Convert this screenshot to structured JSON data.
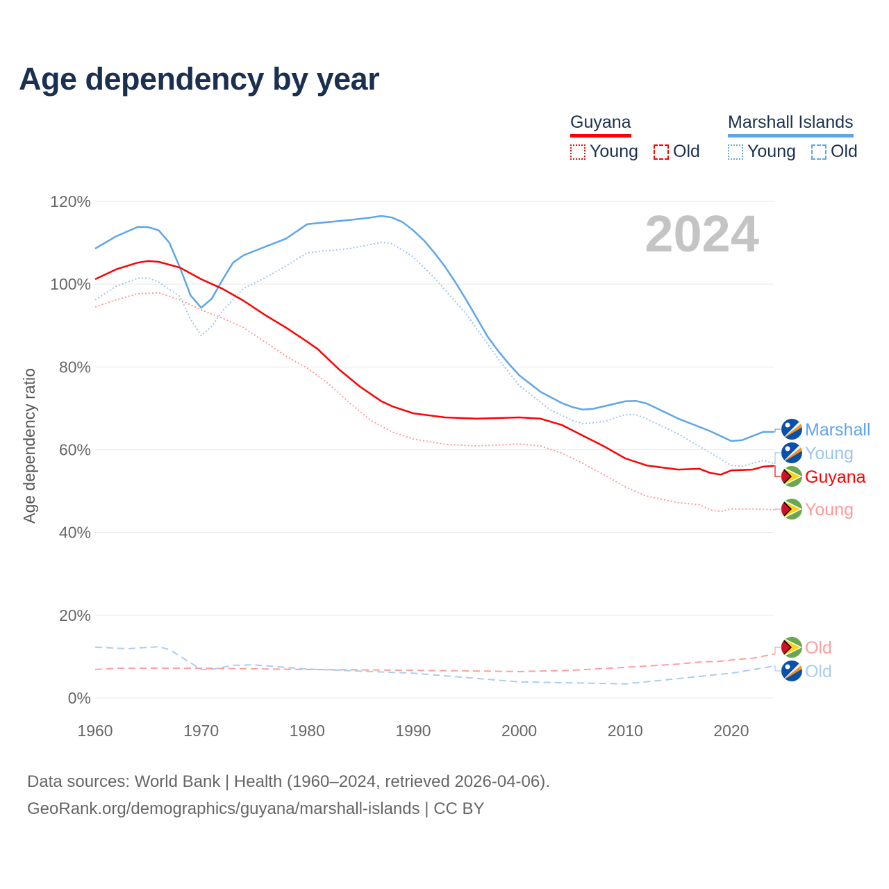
{
  "chart_data": {
    "type": "line",
    "title": "Age dependency by year",
    "ylabel": "Age dependency ratio",
    "xlabel": "",
    "xlim": [
      1960,
      2024
    ],
    "ylim": [
      0,
      120
    ],
    "x_ticks": [
      "1960",
      "1970",
      "1980",
      "1990",
      "2000",
      "2010",
      "2020"
    ],
    "y_ticks": [
      "0%",
      "20%",
      "40%",
      "60%",
      "80%",
      "100%",
      "120%"
    ],
    "grid": true,
    "year_watermark": "2024",
    "legend": {
      "groups": [
        {
          "name": "Guyana",
          "color": "#ff0000",
          "young_label": "Young",
          "old_label": "Old"
        },
        {
          "name": "Marshall Islands",
          "color": "#5ea5ea",
          "young_label": "Young",
          "old_label": "Old"
        }
      ],
      "placement": "top-right"
    },
    "series": [
      {
        "name": "Marshall Islands",
        "end_label": "Marshall",
        "color": "#5ea5ea",
        "style": "solid",
        "points": [
          [
            1960,
            108.6
          ],
          [
            1962,
            111.6
          ],
          [
            1964,
            113.8
          ],
          [
            1965,
            113.8
          ],
          [
            1966,
            113
          ],
          [
            1967,
            110
          ],
          [
            1968,
            104
          ],
          [
            1969,
            97.3
          ],
          [
            1970,
            94.3
          ],
          [
            1971,
            96.5
          ],
          [
            1972,
            101
          ],
          [
            1973,
            105.2
          ],
          [
            1974,
            107
          ],
          [
            1976,
            109
          ],
          [
            1978,
            111
          ],
          [
            1980,
            114.5
          ],
          [
            1982,
            115
          ],
          [
            1984,
            115.5
          ],
          [
            1986,
            116.1
          ],
          [
            1987,
            116.5
          ],
          [
            1988,
            116.1
          ],
          [
            1989,
            115
          ],
          [
            1990,
            113
          ],
          [
            1991,
            110.6
          ],
          [
            1992,
            107.6
          ],
          [
            1993,
            104.2
          ],
          [
            1994,
            100.4
          ],
          [
            1995,
            96.2
          ],
          [
            1996,
            91.8
          ],
          [
            1997,
            87.4
          ],
          [
            1998,
            83.9
          ],
          [
            1999,
            80.8
          ],
          [
            2000,
            78
          ],
          [
            2002,
            74
          ],
          [
            2004,
            71.3
          ],
          [
            2005,
            70.3
          ],
          [
            2006,
            69.7
          ],
          [
            2007,
            69.9
          ],
          [
            2010,
            71.7
          ],
          [
            2011,
            71.8
          ],
          [
            2012,
            71.2
          ],
          [
            2015,
            67.5
          ],
          [
            2018,
            64.5
          ],
          [
            2020,
            62.1
          ],
          [
            2021,
            62.3
          ],
          [
            2023,
            64.3
          ],
          [
            2024,
            64.3
          ]
        ]
      },
      {
        "name": "Marshall Islands Young",
        "end_label": "Young",
        "color": "#9cc6f0",
        "style": "dotted",
        "points": [
          [
            1960,
            96.2
          ],
          [
            1962,
            99.5
          ],
          [
            1964,
            101.4
          ],
          [
            1965,
            101.5
          ],
          [
            1966,
            100.5
          ],
          [
            1968,
            97
          ],
          [
            1969,
            91.5
          ],
          [
            1970,
            87.6
          ],
          [
            1971,
            89.8
          ],
          [
            1972,
            93.5
          ],
          [
            1974,
            99
          ],
          [
            1976,
            101.5
          ],
          [
            1978,
            104.4
          ],
          [
            1980,
            107.6
          ],
          [
            1984,
            108.6
          ],
          [
            1987,
            110.1
          ],
          [
            1988,
            109.8
          ],
          [
            1990,
            106.6
          ],
          [
            1992,
            101.5
          ],
          [
            1995,
            92.8
          ],
          [
            1998,
            82
          ],
          [
            2000,
            75.5
          ],
          [
            2003,
            69.5
          ],
          [
            2005,
            67.1
          ],
          [
            2006,
            66.3
          ],
          [
            2008,
            66.8
          ],
          [
            2010,
            68.5
          ],
          [
            2011,
            68.5
          ],
          [
            2012,
            67.5
          ],
          [
            2015,
            63.8
          ],
          [
            2018,
            59.3
          ],
          [
            2020,
            56.2
          ],
          [
            2021,
            56
          ],
          [
            2023,
            57.4
          ],
          [
            2024,
            56.7
          ]
        ]
      },
      {
        "name": "Guyana",
        "end_label": "Guyana",
        "color": "#ff0000",
        "style": "solid",
        "points": [
          [
            1960,
            101.2
          ],
          [
            1962,
            103.6
          ],
          [
            1964,
            105.2
          ],
          [
            1965,
            105.6
          ],
          [
            1966,
            105.4
          ],
          [
            1968,
            104
          ],
          [
            1970,
            101.2
          ],
          [
            1972,
            98.9
          ],
          [
            1974,
            96
          ],
          [
            1976,
            92.6
          ],
          [
            1978,
            89.5
          ],
          [
            1980,
            86.1
          ],
          [
            1981,
            84.3
          ],
          [
            1983,
            79.4
          ],
          [
            1985,
            75.2
          ],
          [
            1987,
            71.7
          ],
          [
            1988,
            70.5
          ],
          [
            1990,
            68.8
          ],
          [
            1993,
            67.8
          ],
          [
            1996,
            67.5
          ],
          [
            2000,
            67.8
          ],
          [
            2002,
            67.5
          ],
          [
            2004,
            66
          ],
          [
            2006,
            63.4
          ],
          [
            2008,
            60.8
          ],
          [
            2010,
            57.9
          ],
          [
            2012,
            56.2
          ],
          [
            2015,
            55.2
          ],
          [
            2017,
            55.4
          ],
          [
            2018,
            54.4
          ],
          [
            2019,
            54
          ],
          [
            2020,
            55
          ],
          [
            2022,
            55.2
          ],
          [
            2023,
            55.9
          ],
          [
            2024,
            56.1
          ]
        ]
      },
      {
        "name": "Guyana Young",
        "end_label": "Young",
        "color": "#ff9999",
        "style": "dotted",
        "points": [
          [
            1960,
            94.5
          ],
          [
            1962,
            96.2
          ],
          [
            1964,
            97.7
          ],
          [
            1966,
            97.9
          ],
          [
            1968,
            96.2
          ],
          [
            1970,
            93.8
          ],
          [
            1972,
            91.8
          ],
          [
            1974,
            89.5
          ],
          [
            1976,
            86.1
          ],
          [
            1978,
            82.6
          ],
          [
            1980,
            79.7
          ],
          [
            1982,
            76
          ],
          [
            1984,
            71.3
          ],
          [
            1986,
            67.1
          ],
          [
            1988,
            64.3
          ],
          [
            1990,
            62.6
          ],
          [
            1993,
            61.3
          ],
          [
            1996,
            60.9
          ],
          [
            2000,
            61.4
          ],
          [
            2002,
            60.9
          ],
          [
            2004,
            59.2
          ],
          [
            2006,
            56.7
          ],
          [
            2008,
            53.9
          ],
          [
            2010,
            51
          ],
          [
            2012,
            48.8
          ],
          [
            2015,
            47.2
          ],
          [
            2017,
            46.7
          ],
          [
            2018,
            45.5
          ],
          [
            2019,
            45.1
          ],
          [
            2020,
            45.7
          ],
          [
            2022,
            45.7
          ],
          [
            2024,
            45.5
          ]
        ]
      },
      {
        "name": "Guyana Old",
        "end_label": "Old",
        "color": "#ff9f9f",
        "style": "dashed",
        "points": [
          [
            1960,
            6.9
          ],
          [
            1962,
            7.2
          ],
          [
            1970,
            7.2
          ],
          [
            1980,
            6.9
          ],
          [
            1990,
            6.7
          ],
          [
            2000,
            6.4
          ],
          [
            2005,
            6.7
          ],
          [
            2010,
            7.4
          ],
          [
            2015,
            8.2
          ],
          [
            2017,
            8.7
          ],
          [
            2019,
            8.9
          ],
          [
            2020,
            9.2
          ],
          [
            2022,
            9.6
          ],
          [
            2024,
            10.6
          ]
        ]
      },
      {
        "name": "Marshall Islands Old",
        "end_label": "Old",
        "color": "#a9cdf2",
        "style": "dashed",
        "points": [
          [
            1960,
            12.3
          ],
          [
            1963,
            11.9
          ],
          [
            1966,
            12.4
          ],
          [
            1967,
            11.7
          ],
          [
            1970,
            6.9
          ],
          [
            1971,
            6.9
          ],
          [
            1973,
            7.9
          ],
          [
            1975,
            8
          ],
          [
            1980,
            7
          ],
          [
            1990,
            6
          ],
          [
            2000,
            3.9
          ],
          [
            2010,
            3.4
          ],
          [
            2015,
            4.7
          ],
          [
            2020,
            6
          ],
          [
            2024,
            7.7
          ]
        ]
      }
    ]
  },
  "footer": {
    "line1": "Data sources: World Bank | Health (1960–2024, retrieved 2026-04-06).",
    "line2": "GeoRank.org/demographics/guyana/marshall-islands | CC BY"
  }
}
